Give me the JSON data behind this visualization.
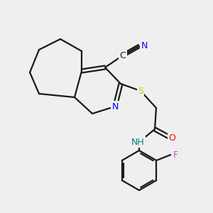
{
  "bg_color": "#efefef",
  "line_color": "#1a1a1a",
  "bond_width": 1.6,
  "figsize": [
    3.0,
    3.0
  ],
  "dpi": 100,
  "atom_colors": {
    "N": "#0000ff",
    "S": "#cccc00",
    "O": "#ff0000",
    "NH": "#008080",
    "F": "#cc44cc",
    "C": "#1a1a1a"
  }
}
